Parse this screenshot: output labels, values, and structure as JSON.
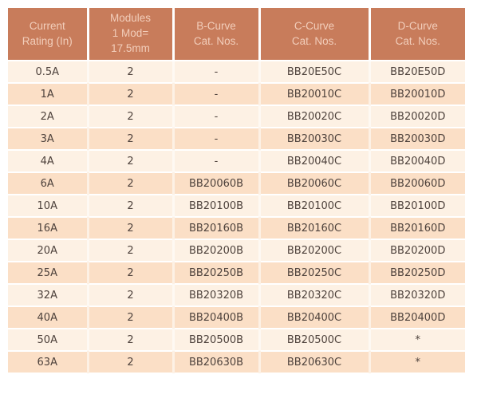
{
  "colors": {
    "header_bg": "#C87C5B",
    "header_text": "#F2CEBB",
    "row_light": "#FDF1E4",
    "row_dark": "#FBDFC6",
    "body_text": "#4E423C",
    "divider": "#FFFFFF"
  },
  "table": {
    "headers": [
      "Current\nRating (In)",
      "Modules\n1 Mod=\n17.5mm",
      "B-Curve\nCat. Nos.",
      "C-Curve\nCat. Nos.",
      "D-Curve\nCat. Nos."
    ],
    "column_ids": [
      "current-rating",
      "modules",
      "b-curve",
      "c-curve",
      "d-curve"
    ],
    "rows": [
      [
        "0.5A",
        "2",
        "-",
        "BB20E50C",
        "BB20E50D"
      ],
      [
        "1A",
        "2",
        "-",
        "BB20010C",
        "BB20010D"
      ],
      [
        "2A",
        "2",
        "-",
        "BB20020C",
        "BB20020D"
      ],
      [
        "3A",
        "2",
        "-",
        "BB20030C",
        "BB20030D"
      ],
      [
        "4A",
        "2",
        "-",
        "BB20040C",
        "BB20040D"
      ],
      [
        "6A",
        "2",
        "BB20060B",
        "BB20060C",
        "BB20060D"
      ],
      [
        "10A",
        "2",
        "BB20100B",
        "BB20100C",
        "BB20100D"
      ],
      [
        "16A",
        "2",
        "BB20160B",
        "BB20160C",
        "BB20160D"
      ],
      [
        "20A",
        "2",
        "BB20200B",
        "BB20200C",
        "BB20200D"
      ],
      [
        "25A",
        "2",
        "BB20250B",
        "BB20250C",
        "BB20250D"
      ],
      [
        "32A",
        "2",
        "BB20320B",
        "BB20320C",
        "BB20320D"
      ],
      [
        "40A",
        "2",
        "BB20400B",
        "BB20400C",
        "BB20400D"
      ],
      [
        "50A",
        "2",
        "BB20500B",
        "BB20500C",
        "*"
      ],
      [
        "63A",
        "2",
        "BB20630B",
        "BB20630C",
        "*"
      ]
    ]
  }
}
